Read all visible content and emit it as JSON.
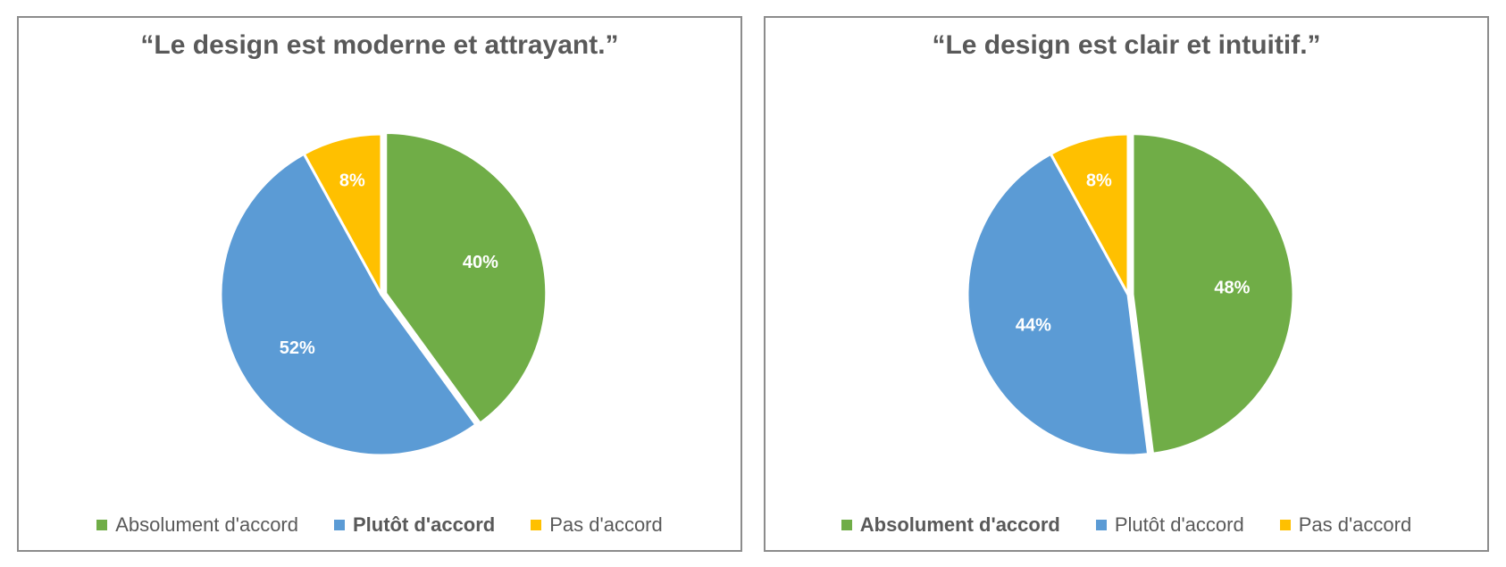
{
  "chart_data": [
    {
      "type": "pie",
      "title": "“Le design est moderne et attrayant.”",
      "categories": [
        "Absolument d'accord",
        "Plutôt d'accord",
        "Pas d'accord"
      ],
      "values": [
        40,
        52,
        8
      ],
      "labels": [
        "40%",
        "52%",
        "8%"
      ],
      "colors": [
        "#70ad47",
        "#5b9bd5",
        "#ffc000"
      ],
      "exploded": [
        "Absolument d'accord"
      ],
      "legend_bold": "Plutôt d'accord",
      "legend_position": "bottom"
    },
    {
      "type": "pie",
      "title": "“Le design est clair et intuitif.”",
      "categories": [
        "Absolument d'accord",
        "Plutôt d'accord",
        "Pas d'accord"
      ],
      "values": [
        48,
        44,
        8
      ],
      "labels": [
        "48%",
        "44%",
        "8%"
      ],
      "colors": [
        "#70ad47",
        "#5b9bd5",
        "#ffc000"
      ],
      "exploded": [
        "Absolument d'accord"
      ],
      "legend_bold": "Absolument d'accord",
      "legend_position": "bottom"
    }
  ]
}
